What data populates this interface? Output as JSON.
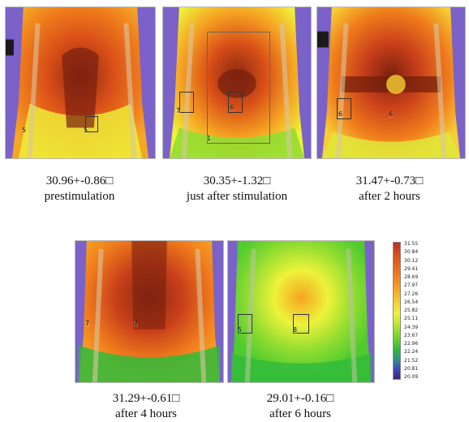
{
  "panels": [
    {
      "value": "30.96+-0.86□",
      "label": "prestimulation",
      "markers": [
        "5",
        "5"
      ]
    },
    {
      "value": "30.35+-1.32□",
      "label": "just after stimulation",
      "markers": [
        "7",
        "6",
        "1"
      ]
    },
    {
      "value": "31.47+-0.73□",
      "label": "after 2 hours",
      "markers": [
        "6",
        "6"
      ]
    },
    {
      "value": "31.29+-0.61□",
      "label": "after 4 hours",
      "markers": [
        "7",
        "7"
      ]
    },
    {
      "value": "29.01+-0.16□",
      "label": "after 6 hours",
      "markers": [
        "5",
        "8"
      ]
    }
  ],
  "color_scale": {
    "ticks": [
      "31.55",
      "30.84",
      "30.12",
      "29.41",
      "28.69",
      "27.97",
      "27.26",
      "26.54",
      "25.82",
      "25.11",
      "24.39",
      "23.67",
      "22.96",
      "22.24",
      "21.52",
      "20.81",
      "20.09"
    ],
    "colors": {
      "hot": "#c0301e",
      "warm": "#f07c1c",
      "mid": "#f6d033",
      "cool": "#6fd32d",
      "cold": "#40207a"
    }
  }
}
